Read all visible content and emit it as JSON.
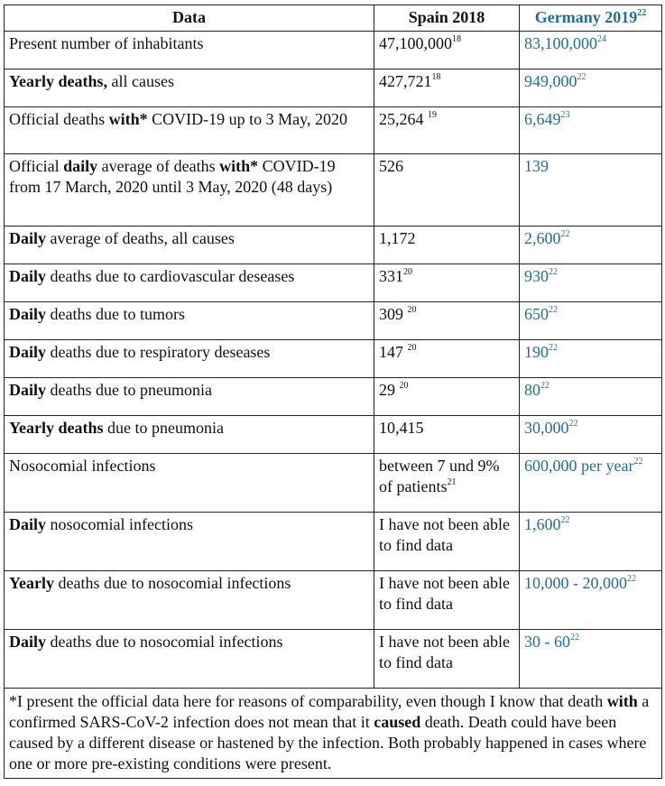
{
  "header": {
    "data": "Data",
    "spain": "Spain 2018",
    "germany": "Germany 2019",
    "germany_ref": "22"
  },
  "rows": [
    {
      "label": [
        "",
        "Present number of inhabitants"
      ],
      "spain": "47,100,000",
      "spain_ref": "18",
      "germany": "83,100,000",
      "germany_ref": "24"
    },
    {
      "label": [
        "Yearly deaths,",
        " all causes"
      ],
      "spain": "427,721",
      "spain_ref": "18",
      "germany": "949,000",
      "germany_ref": "22"
    },
    {
      "label": [
        "",
        "Official deaths ",
        "with*",
        " COVID-19 up to 3 May, 2020"
      ],
      "spain": "25,264 ",
      "spain_ref": "19",
      "germany": "6,649",
      "germany_ref": "23"
    },
    {
      "label": [
        "",
        "Official ",
        "daily",
        " average of deaths ",
        "with*",
        " COVID-19 from 17 March, 2020 until 3 May, 2020 (48 days)"
      ],
      "spain": "526",
      "spain_ref": "",
      "germany": "139",
      "germany_ref": ""
    },
    {
      "label": [
        "Daily",
        " average of deaths, all causes"
      ],
      "spain": "1,172",
      "spain_ref": "",
      "germany": "2,600",
      "germany_ref": "22"
    },
    {
      "label": [
        "Daily",
        " deaths due to cardiovascular deseases"
      ],
      "spain": "331",
      "spain_ref": "20",
      "germany": "930",
      "germany_ref": "22"
    },
    {
      "label": [
        "Daily",
        " deaths due to tumors"
      ],
      "spain": "309 ",
      "spain_ref": "20",
      "germany": "650",
      "germany_ref": "22"
    },
    {
      "label": [
        "Daily",
        " deaths due to respiratory deseases"
      ],
      "spain": "147 ",
      "spain_ref": "20",
      "germany": "190",
      "germany_ref": "22"
    },
    {
      "label": [
        "Daily",
        " deaths due to pneumonia"
      ],
      "spain": "29 ",
      "spain_ref": "20",
      "germany": "80",
      "germany_ref": "22"
    },
    {
      "label": [
        "Yearly deaths",
        " due to pneumonia"
      ],
      "spain": "10,415",
      "spain_ref": "",
      "germany": "30,000",
      "germany_ref": "22"
    },
    {
      "label": [
        "",
        "Nosocomial infections"
      ],
      "spain": "between 7 und 9% of patients",
      "spain_ref": "21",
      "germany": "600,000 per year",
      "germany_ref": "22"
    },
    {
      "label": [
        "Daily",
        " nosocomial infections"
      ],
      "spain": "I have not been able to find data",
      "spain_ref": "",
      "germany": "1,600",
      "germany_ref": "22"
    },
    {
      "label": [
        "Yearly",
        " deaths due to nosocomial infections"
      ],
      "spain": "I have not been able to find data",
      "spain_ref": "",
      "germany": "10,000 - 20,000",
      "germany_ref": "22"
    },
    {
      "label": [
        "Daily",
        " deaths due to nosocomial infections"
      ],
      "spain": "I have not been able to find data",
      "spain_ref": "",
      "germany": "30 - 60",
      "germany_ref": "22"
    }
  ],
  "footnote": [
    "*I present the official data here for reasons of comparability, even though I know that death ",
    "with",
    " a confirmed SARS-CoV-2 infection does not mean that it ",
    "caused",
    " death. Death could have been caused by a different disease or hastened by the infection. Both probably happened in cases where one or more pre-existing conditions were present."
  ],
  "colors": {
    "germany_text": "#1f6f9a",
    "border": "#222222"
  }
}
